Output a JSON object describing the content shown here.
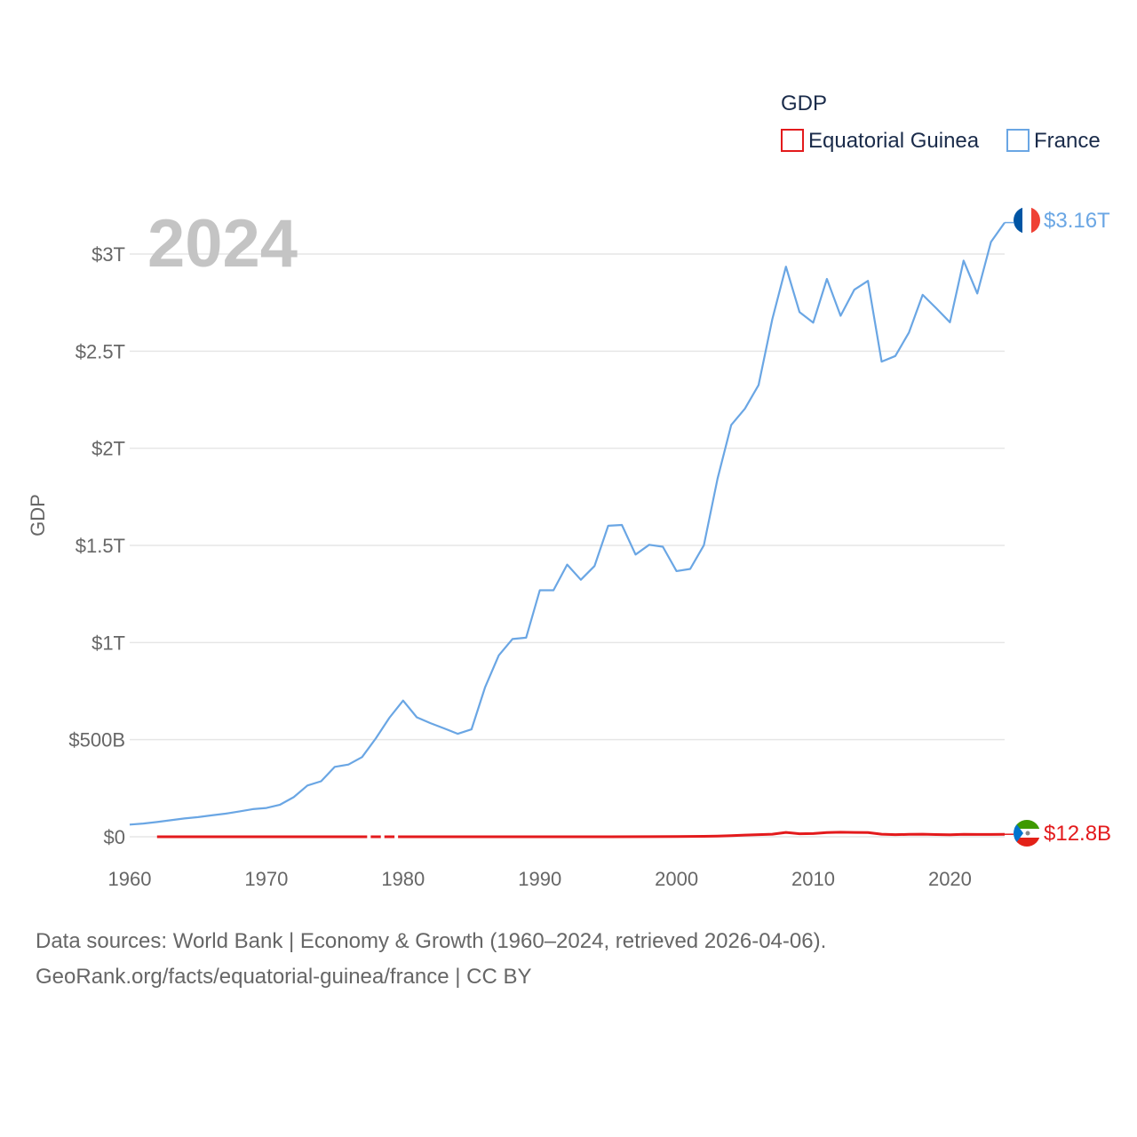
{
  "chart_data": {
    "type": "line",
    "title": "GDP",
    "year_label": "2024",
    "xlabel": "",
    "ylabel": "GDP",
    "xlim": [
      1960,
      2024
    ],
    "ylim": [
      0,
      3300000000000
    ],
    "x_ticks": [
      1960,
      1970,
      1980,
      1990,
      2000,
      2010,
      2020
    ],
    "y_ticks": [
      {
        "value": 0,
        "label": "$0"
      },
      {
        "value": 500000000000,
        "label": "$500B"
      },
      {
        "value": 1000000000000,
        "label": "$1T"
      },
      {
        "value": 1500000000000,
        "label": "$1.5T"
      },
      {
        "value": 2000000000000,
        "label": "$2T"
      },
      {
        "value": 2500000000000,
        "label": "$2.5T"
      },
      {
        "value": 3000000000000,
        "label": "$3T"
      }
    ],
    "grid": true,
    "legend_position": "top-right",
    "series": [
      {
        "name": "Equatorial Guinea",
        "color": "#e31a1c",
        "end_label": "$12.8B",
        "flag": "equatorial-guinea-flag-icon",
        "gap_years": [
          1977,
          1978,
          1979
        ],
        "x": [
          1962,
          1965,
          1970,
          1975,
          1977,
          1978,
          1979,
          1980,
          1985,
          1990,
          1995,
          1998,
          2000,
          2001,
          2002,
          2003,
          2004,
          2005,
          2006,
          2007,
          2008,
          2009,
          2010,
          2011,
          2012,
          2013,
          2014,
          2015,
          2016,
          2017,
          2018,
          2019,
          2020,
          2021,
          2022,
          2023,
          2024
        ],
        "values": [
          30000000.0,
          50000000.0,
          100000000.0,
          150000000.0,
          200000000.0,
          200000000.0,
          200000000.0,
          200000000.0,
          150000000.0,
          130000000.0,
          200000000.0,
          600000000.0,
          1100000000.0,
          1700000000.0,
          2200000000.0,
          3000000000.0,
          5300000000.0,
          8600000000.0,
          10900000000.0,
          13100000000.0,
          22500000000.0,
          15600000000.0,
          16300000000.0,
          21400000000.0,
          23400000000.0,
          22400000000.0,
          21800000000.0,
          13200000000.0,
          11200000000.0,
          12300000000.0,
          13400000000.0,
          11400000000.0,
          10100000000.0,
          12300000000.0,
          12000000000.0,
          12100000000.0,
          12800000000.0
        ]
      },
      {
        "name": "France",
        "color": "#6aa6e4",
        "end_label": "$3.16T",
        "flag": "france-flag-icon",
        "gap_years": [],
        "x": [
          1960,
          1961,
          1962,
          1963,
          1964,
          1965,
          1966,
          1967,
          1968,
          1969,
          1970,
          1971,
          1972,
          1973,
          1974,
          1975,
          1976,
          1977,
          1978,
          1979,
          1980,
          1981,
          1982,
          1983,
          1984,
          1985,
          1986,
          1987,
          1988,
          1989,
          1990,
          1991,
          1992,
          1993,
          1994,
          1995,
          1996,
          1997,
          1998,
          1999,
          2000,
          2001,
          2002,
          2003,
          2004,
          2005,
          2006,
          2007,
          2008,
          2009,
          2010,
          2011,
          2012,
          2013,
          2014,
          2015,
          2016,
          2017,
          2018,
          2019,
          2020,
          2021,
          2022,
          2023,
          2024
        ],
        "values": [
          62700000000.0,
          68000000000.0,
          76000000000.0,
          85000000000.0,
          94000000000.0,
          101000000000.0,
          110000000000.0,
          119000000000.0,
          130000000000.0,
          142000000000.0,
          148000000000.0,
          165000000000.0,
          204000000000.0,
          264000000000.0,
          286000000000.0,
          360000000000.0,
          372000000000.0,
          410000000000.0,
          506000000000.0,
          613000000000.0,
          701000000000.0,
          615000000000.0,
          585000000000.0,
          558000000000.0,
          530000000000.0,
          553000000000.0,
          771000000000.0,
          934000000000.0,
          1018000000000.0,
          1025000000000.0,
          1269000000000.0,
          1269000000000.0,
          1401000000000.0,
          1323000000000.0,
          1394000000000.0,
          1601000000000.0,
          1605000000000.0,
          1453000000000.0,
          1503000000000.0,
          1493000000000.0,
          1368000000000.0,
          1379000000000.0,
          1501000000000.0,
          1844000000000.0,
          2120000000000.0,
          2204000000000.0,
          2326000000000.0,
          2664000000000.0,
          2935000000000.0,
          2701000000000.0,
          2647000000000.0,
          2872000000000.0,
          2682000000000.0,
          2816000000000.0,
          2862000000000.0,
          2446000000000.0,
          2475000000000.0,
          2596000000000.0,
          2790000000000.0,
          2721000000000.0,
          2649000000000.0,
          2966000000000.0,
          2797000000000.0,
          3062000000000.0,
          3162000000000.0
        ]
      }
    ]
  },
  "source": {
    "line1": "Data sources: World Bank | Economy & Growth (1960–2024, retrieved 2026-04-06).",
    "line2": "GeoRank.org/facts/equatorial-guinea/france | CC BY"
  }
}
